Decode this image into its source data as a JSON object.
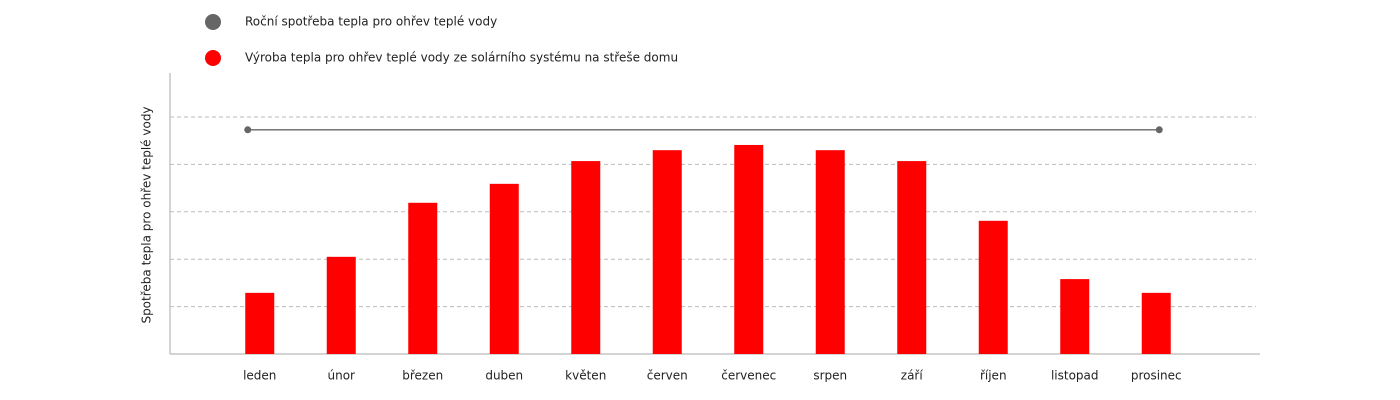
{
  "chart_data": {
    "type": "bar",
    "y_label": "Spotřeba tepla pro ohřev teplé vody",
    "categories": [
      "leden",
      "únor",
      "březen",
      "duben",
      "květen",
      "červen",
      "červenec",
      "srpen",
      "září",
      "říjen",
      "listopad",
      "prosinec"
    ],
    "series": [
      {
        "name": "Roční spotřeba tepla pro ohřev teplé vody",
        "color": "#666666",
        "type": "line",
        "values": [
          4.73,
          4.73,
          4.73,
          4.73,
          4.73,
          4.73,
          4.73,
          4.73,
          4.73,
          4.73,
          4.73,
          4.73
        ]
      },
      {
        "name": "Výroba tepla pro ohřev teplé vody ze solárního systému na střeše domu",
        "color": "#ff0000",
        "type": "bar",
        "values": [
          1.29,
          2.05,
          3.19,
          3.59,
          4.07,
          4.3,
          4.41,
          4.3,
          4.07,
          2.81,
          1.58,
          1.29
        ]
      }
    ],
    "ylim": [
      0,
      6
    ],
    "yticks": [
      1,
      2,
      3,
      4,
      5
    ],
    "grid": true
  }
}
